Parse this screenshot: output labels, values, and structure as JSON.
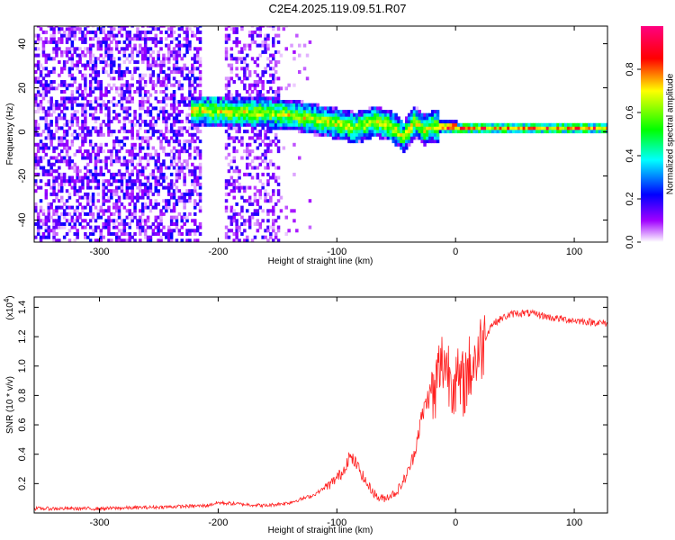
{
  "title": "C2E4.2025.119.09.51.R07",
  "chart_data": [
    {
      "type": "heatmap",
      "xlabel": "Height of straight line (km)",
      "ylabel": "Frequency (Hz)",
      "xlim": [
        -355,
        128
      ],
      "ylim": [
        -50,
        48
      ],
      "xticks": [
        -300,
        -200,
        -100,
        0,
        100
      ],
      "yticks": [
        -40,
        -20,
        0,
        20,
        40
      ],
      "colorbar": {
        "label": "Normalized spectral amplitude",
        "range": [
          0.0,
          1.0
        ],
        "ticks": [
          0.0,
          0.2,
          0.4,
          0.6,
          0.8
        ],
        "tick_labels": [
          "0.0",
          "0.2",
          "0.4",
          "0.6",
          "0.8"
        ],
        "colors": [
          "#ffffff",
          "#a000ff",
          "#0000ff",
          "#00ffff",
          "#00ff00",
          "#ffff00",
          "#ff0000",
          "#ff0080"
        ]
      },
      "signal_track": {
        "x": [
          -225,
          -205,
          -185,
          -160,
          -140,
          -120,
          -100,
          -85,
          -70,
          -55,
          -45,
          -35,
          -28,
          -20,
          0,
          50,
          128
        ],
        "y": [
          9,
          9,
          8,
          8,
          7,
          5,
          3,
          1,
          4,
          2,
          -3,
          4,
          0,
          2,
          1,
          1,
          1
        ]
      }
    },
    {
      "type": "line",
      "xlabel": "Height of straight line (km)",
      "ylabel": "SNR (10 * v/v)",
      "y_multiplier": "(x10",
      "y_multiplier_exp": "4",
      "y_multiplier_close": ")",
      "xlim": [
        -355,
        128
      ],
      "ylim": [
        0.0,
        1.47
      ],
      "xticks": [
        -300,
        -200,
        -100,
        0,
        100
      ],
      "yticks": [
        0.2,
        0.4,
        0.6,
        0.8,
        1.0,
        1.2,
        1.4
      ],
      "ytick_labels": [
        "0.2",
        "0.4",
        "0.6",
        "0.8",
        "1.0",
        "1.2",
        "1.4"
      ],
      "series": [
        {
          "color": "#ff2020",
          "x": [
            -355,
            -300,
            -250,
            -210,
            -200,
            -180,
            -160,
            -140,
            -120,
            -105,
            -95,
            -90,
            -85,
            -80,
            -75,
            -70,
            -65,
            -60,
            -55,
            -50,
            -45,
            -40,
            -35,
            -30,
            -25,
            -22,
            -20,
            -18,
            -15,
            -12,
            -10,
            -5,
            0,
            5,
            10,
            20,
            30,
            40,
            50,
            60,
            70,
            80,
            100,
            128
          ],
          "y": [
            0.03,
            0.03,
            0.04,
            0.05,
            0.07,
            0.06,
            0.05,
            0.07,
            0.12,
            0.2,
            0.28,
            0.38,
            0.35,
            0.28,
            0.2,
            0.15,
            0.1,
            0.1,
            0.12,
            0.14,
            0.2,
            0.28,
            0.4,
            0.6,
            0.75,
            0.8,
            0.85,
            0.75,
            0.95,
            1.0,
            1.05,
            0.95,
            0.9,
            0.85,
            0.95,
            1.1,
            1.28,
            1.33,
            1.36,
            1.36,
            1.35,
            1.33,
            1.31,
            1.29
          ]
        }
      ]
    }
  ]
}
